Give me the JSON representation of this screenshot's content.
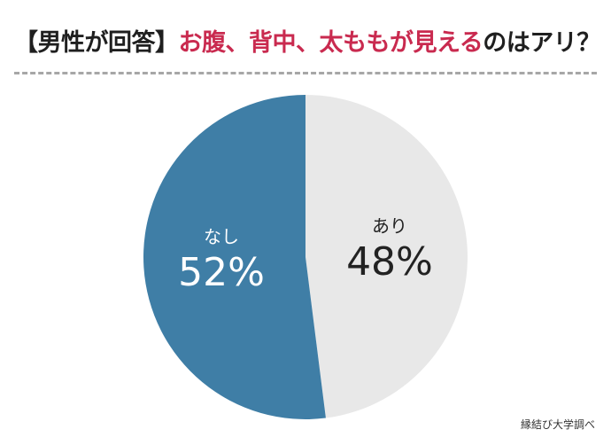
{
  "title": {
    "prefix": "【男性が回答】",
    "highlight": "お腹、背中、太ももが見える",
    "suffix": "のはアリ？"
  },
  "chart_data": {
    "type": "pie",
    "title": "【男性が回答】お腹、背中、太ももが見えるのはアリ？",
    "slices": [
      {
        "label": "あり",
        "value": 48,
        "display": "48%",
        "color": "#e8e8e8",
        "text_color": "#222222"
      },
      {
        "label": "なし",
        "value": 52,
        "display": "52%",
        "color": "#3f7ea6",
        "text_color": "#ffffff"
      }
    ]
  },
  "source": "縁結び大学調べ"
}
